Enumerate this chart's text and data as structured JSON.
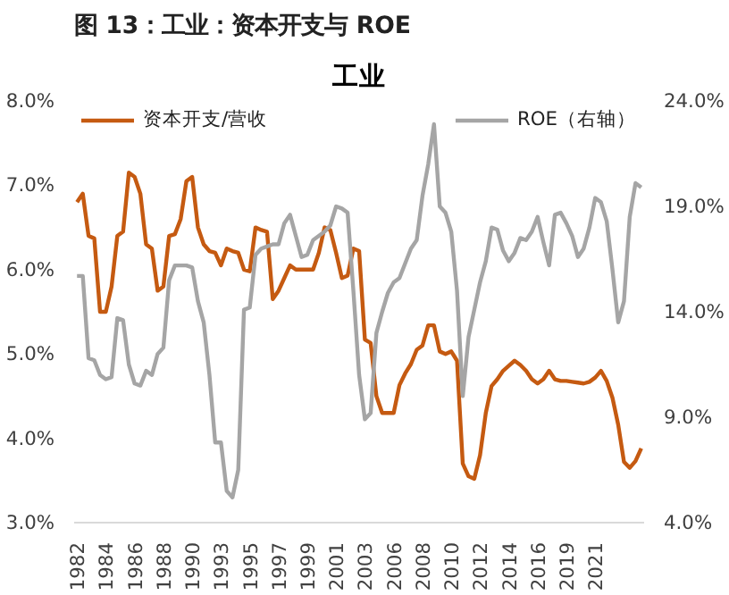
{
  "chart_data": {
    "type": "line",
    "title": "图 13：工业：资本开支与 ROE",
    "subtitle": "工业",
    "categories": [
      "1982",
      null,
      null,
      null,
      null,
      "1984",
      null,
      null,
      null,
      null,
      "1986",
      null,
      null,
      null,
      null,
      "1988",
      null,
      null,
      null,
      null,
      "1990",
      null,
      null,
      null,
      null,
      "1993",
      null,
      null,
      null,
      null,
      "1995",
      null,
      null,
      null,
      null,
      "1997",
      null,
      null,
      null,
      null,
      "1999",
      null,
      null,
      null,
      null,
      "2001",
      null,
      null,
      null,
      null,
      "2003",
      null,
      null,
      null,
      null,
      "2006",
      null,
      null,
      null,
      null,
      "2008",
      null,
      null,
      null,
      null,
      "2010",
      null,
      null,
      null,
      null,
      "2012",
      null,
      null,
      null,
      null,
      "2014",
      null,
      null,
      null,
      null,
      "2016",
      null,
      null,
      null,
      null,
      "2019",
      null,
      null,
      null,
      null,
      "2021",
      null,
      null,
      null,
      null,
      null,
      null,
      null,
      null
    ],
    "ylim": [
      3.0,
      8.0
    ],
    "yticks": [
      {
        "value": 3,
        "label": "3.0%"
      },
      {
        "value": 4,
        "label": "4.0%"
      },
      {
        "value": 5,
        "label": "5.0%"
      },
      {
        "value": 6,
        "label": "6.0%"
      },
      {
        "value": 7,
        "label": "7.0%"
      },
      {
        "value": 8,
        "label": "8.0%"
      }
    ],
    "y2lim": [
      4.0,
      24.0
    ],
    "y2ticks": [
      {
        "value": 4,
        "label": "4.0%"
      },
      {
        "value": 9,
        "label": "9.0%"
      },
      {
        "value": 14,
        "label": "14.0%"
      },
      {
        "value": 19,
        "label": "19.0%"
      },
      {
        "value": 24,
        "label": "24.0%"
      }
    ],
    "legend": "top",
    "grid": false,
    "series": [
      {
        "name": "资本开支/营收",
        "color": "#c55a11",
        "values": [
          6.8,
          6.9,
          6.4,
          6.37,
          5.5,
          5.5,
          5.8,
          6.4,
          6.45,
          7.15,
          7.1,
          6.9,
          6.3,
          6.25,
          5.75,
          5.8,
          6.4,
          6.42,
          6.6,
          7.05,
          7.1,
          6.5,
          6.3,
          6.22,
          6.2,
          6.05,
          6.25,
          6.22,
          6.2,
          6.0,
          5.98,
          6.5,
          6.47,
          6.45,
          5.65,
          5.75,
          5.9,
          6.05,
          6.0,
          6.0,
          6.0,
          6.0,
          6.2,
          6.5,
          6.47,
          6.2,
          5.9,
          5.93,
          6.25,
          6.22,
          5.17,
          5.13,
          4.5,
          4.3,
          4.3,
          4.3,
          4.63,
          4.77,
          4.88,
          5.05,
          5.1,
          5.34,
          5.34,
          5.03,
          5.0,
          5.03,
          4.92,
          3.7,
          3.55,
          3.52,
          3.8,
          4.3,
          4.62,
          4.7,
          4.8,
          4.86,
          4.92,
          4.87,
          4.8,
          4.7,
          4.65,
          4.7,
          4.8,
          4.7,
          4.68,
          4.68,
          4.67,
          4.66,
          4.65,
          4.67,
          4.72,
          4.8,
          4.68,
          4.48,
          4.16,
          3.72,
          3.65,
          3.73,
          3.88
        ]
      },
      {
        "name": "ROE（右轴）",
        "color": "#a5a5a5",
        "axis": "y2",
        "values": [
          15.7,
          15.7,
          11.8,
          11.7,
          11.0,
          10.8,
          10.9,
          13.7,
          13.6,
          11.5,
          10.6,
          10.5,
          11.2,
          11.0,
          12.0,
          12.3,
          15.5,
          16.2,
          16.2,
          16.2,
          16.1,
          14.5,
          13.5,
          11.0,
          7.8,
          7.8,
          5.5,
          5.2,
          6.5,
          14.1,
          14.2,
          16.7,
          17.0,
          17.1,
          17.2,
          17.2,
          18.2,
          18.6,
          17.6,
          16.6,
          16.7,
          17.4,
          17.6,
          17.8,
          18.1,
          19.0,
          18.9,
          18.7,
          15.0,
          11.0,
          8.9,
          9.2,
          13.0,
          14.0,
          14.9,
          15.4,
          15.6,
          16.3,
          17.0,
          17.4,
          19.5,
          21.0,
          22.9,
          19.0,
          18.7,
          17.8,
          15.0,
          10.0,
          12.8,
          14.1,
          15.4,
          16.4,
          18.0,
          17.9,
          16.9,
          16.4,
          16.8,
          17.5,
          17.4,
          17.8,
          18.5,
          17.3,
          16.2,
          18.6,
          18.7,
          18.2,
          17.6,
          16.6,
          17.0,
          18.0,
          19.4,
          19.2,
          18.3,
          16.0,
          13.5,
          14.5,
          18.5,
          20.1,
          19.9
        ]
      }
    ]
  }
}
